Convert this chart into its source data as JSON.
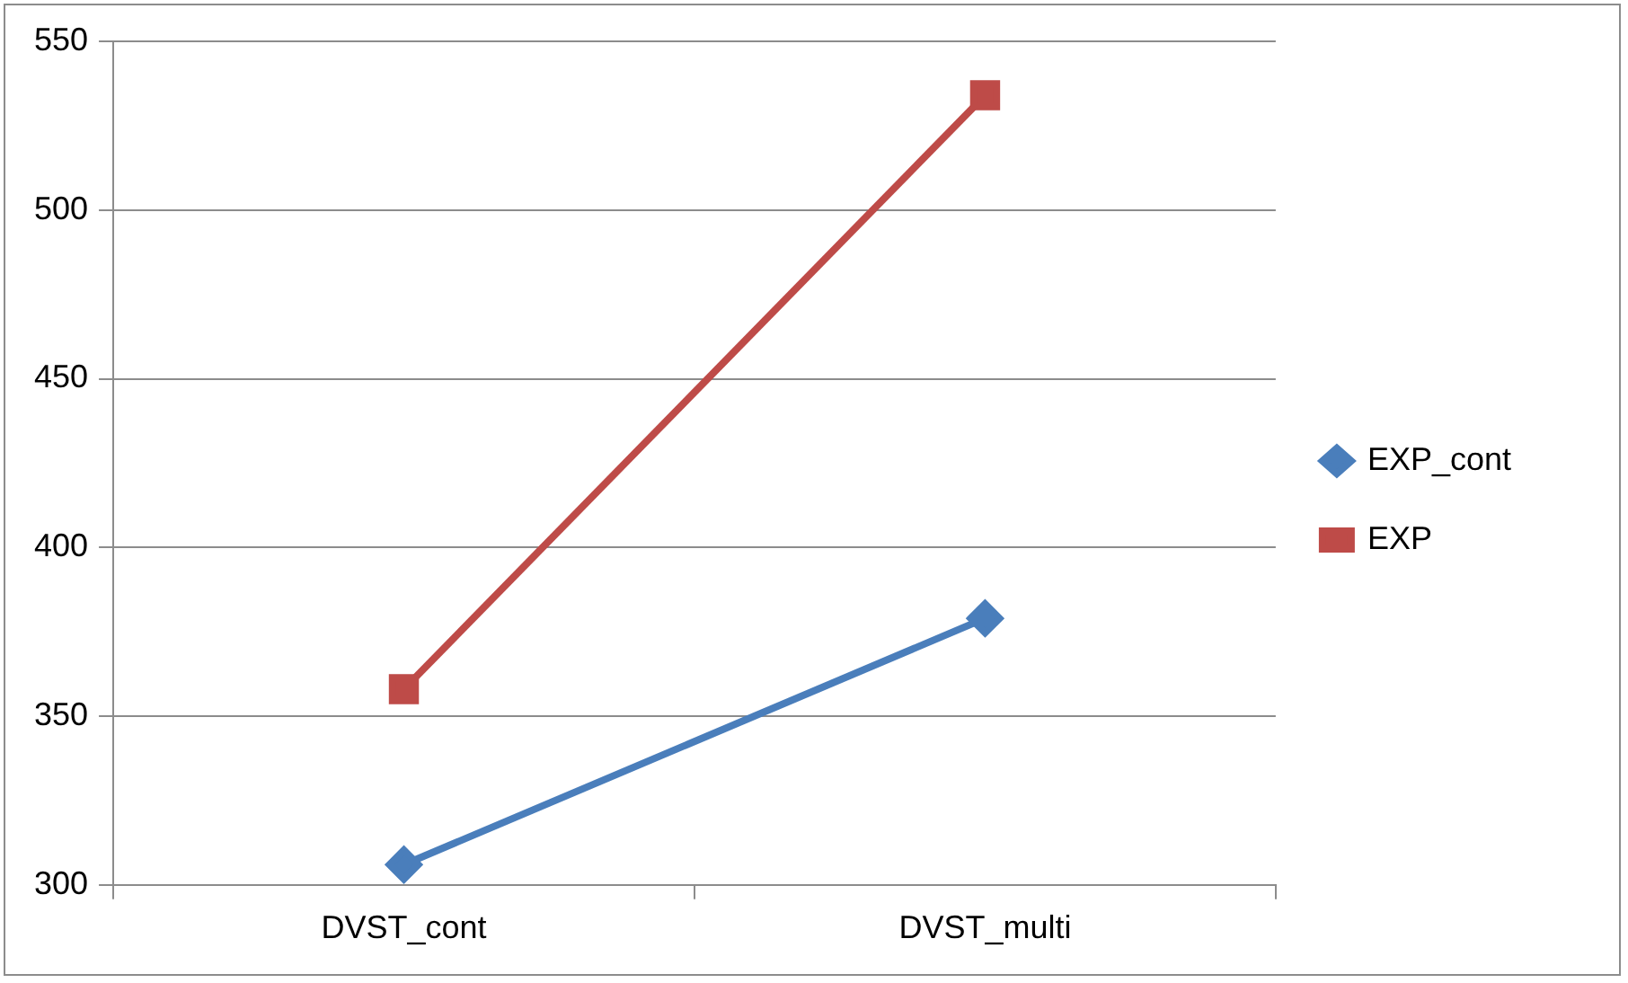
{
  "chart_data": {
    "type": "line",
    "categories": [
      "DVST_cont",
      "DVST_multi"
    ],
    "series": [
      {
        "name": "EXP_cont",
        "color": "#4a7ebb",
        "values": [
          306,
          379
        ],
        "marker": "diamond"
      },
      {
        "name": "EXP",
        "color": "#be4b48",
        "values": [
          358,
          534
        ],
        "marker": "square"
      }
    ],
    "ylim": [
      300,
      550
    ],
    "yticks": [
      300,
      350,
      400,
      450,
      500,
      550
    ],
    "grid": "y",
    "legend": "right",
    "line_style": "solid"
  }
}
